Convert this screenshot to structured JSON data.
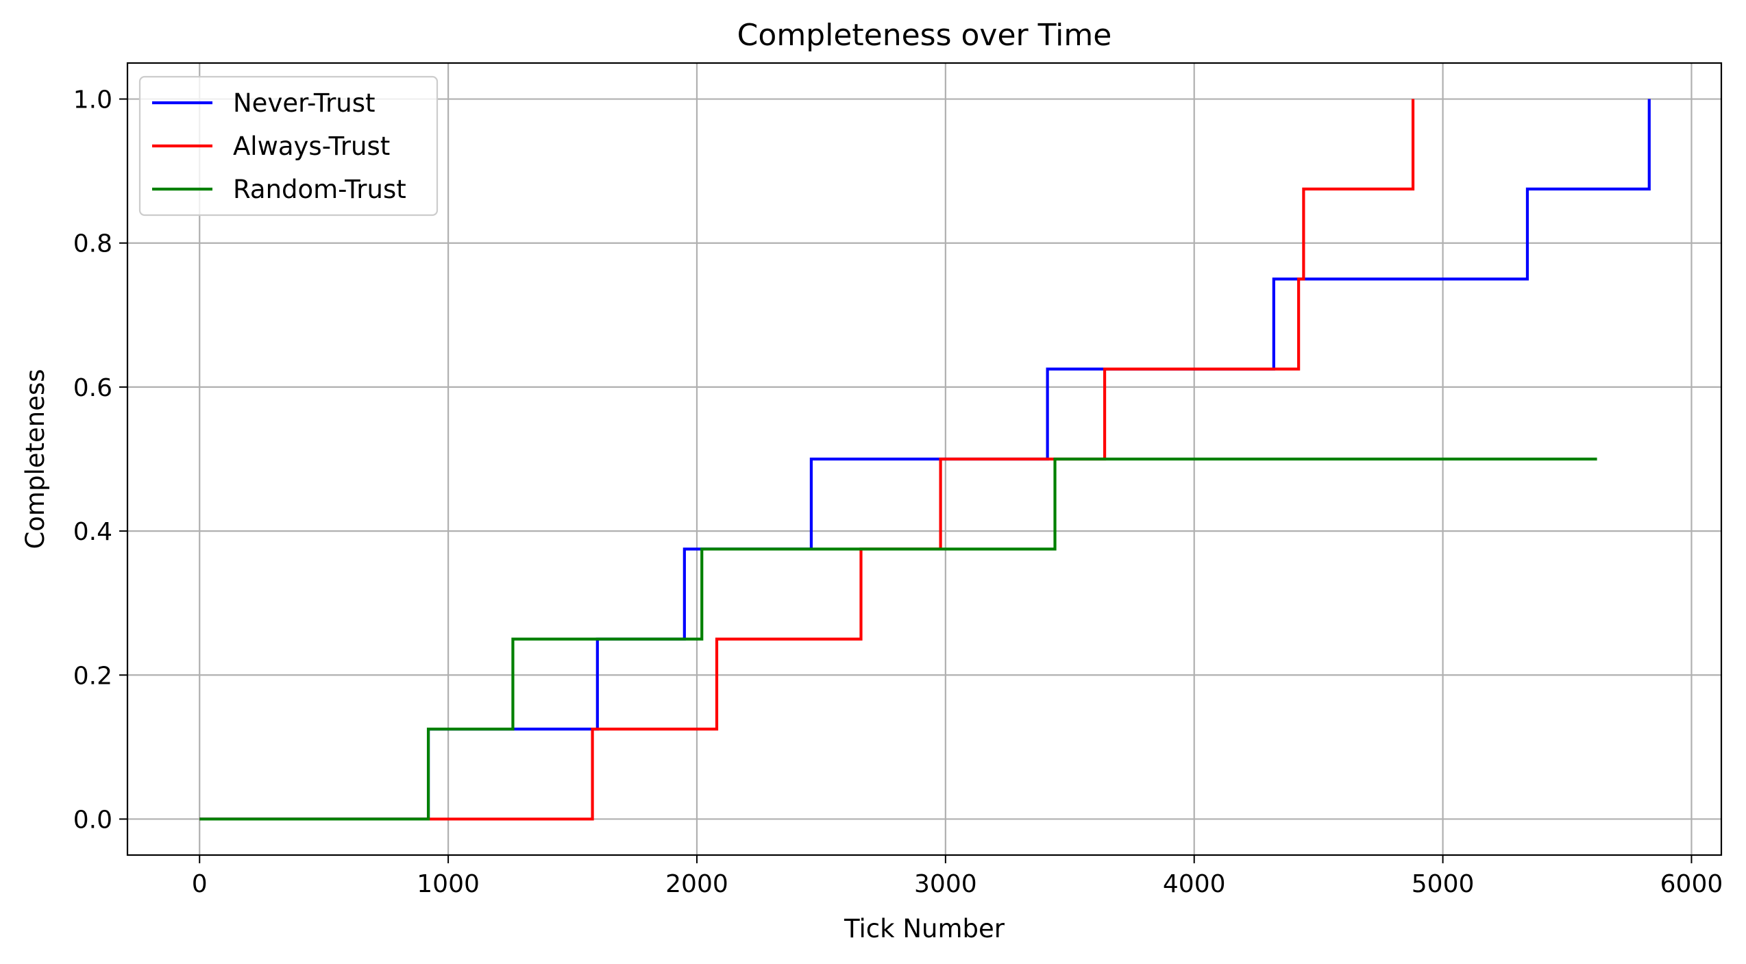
{
  "chart_data": {
    "type": "line",
    "step": "post",
    "title": "Completeness over Time",
    "xlabel": "Tick Number",
    "ylabel": "Completeness",
    "xlim": [
      -290,
      6120
    ],
    "ylim": [
      -0.05,
      1.05
    ],
    "xticks": [
      0,
      1000,
      2000,
      3000,
      4000,
      5000,
      6000
    ],
    "xtick_labels": [
      "0",
      "1000",
      "2000",
      "3000",
      "4000",
      "5000",
      "6000"
    ],
    "yticks": [
      0.0,
      0.2,
      0.4,
      0.6,
      0.8,
      1.0
    ],
    "ytick_labels": [
      "0.0",
      "0.2",
      "0.4",
      "0.6",
      "0.8",
      "1.0"
    ],
    "grid": true,
    "legend_position": "top-left",
    "series": [
      {
        "name": "Never-Trust",
        "color": "#0000ff",
        "x": [
          0,
          920,
          1600,
          1950,
          2460,
          3410,
          4320,
          5340,
          5830
        ],
        "y": [
          0.0,
          0.125,
          0.25,
          0.375,
          0.5,
          0.625,
          0.75,
          0.875,
          1.0
        ]
      },
      {
        "name": "Always-Trust",
        "color": "#ff0000",
        "x": [
          0,
          1580,
          2080,
          2660,
          2980,
          3640,
          4420,
          4440,
          4880
        ],
        "y": [
          0.0,
          0.125,
          0.25,
          0.375,
          0.5,
          0.625,
          0.75,
          0.875,
          1.0
        ]
      },
      {
        "name": "Random-Trust",
        "color": "#008000",
        "x": [
          0,
          920,
          1260,
          2020,
          3440,
          5620
        ],
        "y": [
          0.0,
          0.125,
          0.25,
          0.375,
          0.5,
          0.5
        ]
      }
    ]
  }
}
